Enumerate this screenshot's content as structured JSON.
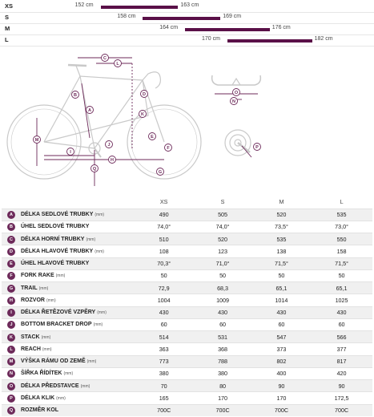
{
  "size_chart": [
    {
      "size": "XS",
      "from": "152 cm",
      "to": "163 cm",
      "range": [
        152,
        163
      ]
    },
    {
      "size": "S",
      "from": "158 cm",
      "to": "169 cm",
      "range": [
        158,
        169
      ]
    },
    {
      "size": "M",
      "from": "164 cm",
      "to": "176 cm",
      "range": [
        164,
        176
      ]
    },
    {
      "size": "L",
      "from": "170 cm",
      "to": "182 cm",
      "range": [
        170,
        182
      ]
    }
  ],
  "diagram_labels": [
    "A",
    "B",
    "C",
    "D",
    "E",
    "F",
    "G",
    "H",
    "I",
    "J",
    "K",
    "L",
    "M",
    "N",
    "O",
    "P",
    "Q"
  ],
  "colors": {
    "accent": "#6d2a5a",
    "bar": "#5a1048",
    "frame_line": "#c9c9c9"
  },
  "table": {
    "headers": [
      "",
      "",
      "XS",
      "S",
      "M",
      "L"
    ],
    "rows": [
      {
        "code": "A",
        "name": "DÉLKA SEDLOVÉ TRUBKY",
        "unit": "(mm)",
        "values": [
          "490",
          "505",
          "520",
          "535"
        ]
      },
      {
        "code": "B",
        "name": "ÚHEL SEDLOVÉ TRUBKY",
        "unit": "",
        "values": [
          "74,0°",
          "74,0°",
          "73,5°",
          "73,0°"
        ]
      },
      {
        "code": "C",
        "name": "DÉLKA HORNÍ TRUBKY",
        "unit": "(mm)",
        "values": [
          "510",
          "520",
          "535",
          "550"
        ]
      },
      {
        "code": "D",
        "name": "DÉLKA HLAVOVÉ TRUBKY",
        "unit": "(mm)",
        "values": [
          "108",
          "123",
          "138",
          "158"
        ]
      },
      {
        "code": "E",
        "name": "ÚHEL HLAVOVÉ TRUBKY",
        "unit": "",
        "values": [
          "70,3°",
          "71,0°",
          "71,5°",
          "71,5°"
        ]
      },
      {
        "code": "F",
        "name": "FORK RAKE",
        "unit": "(mm)",
        "values": [
          "50",
          "50",
          "50",
          "50"
        ]
      },
      {
        "code": "G",
        "name": "TRAIL",
        "unit": "(mm)",
        "values": [
          "72,9",
          "68,3",
          "65,1",
          "65,1"
        ]
      },
      {
        "code": "H",
        "name": "ROZVOR",
        "unit": "(mm)",
        "values": [
          "1004",
          "1009",
          "1014",
          "1025"
        ]
      },
      {
        "code": "I",
        "name": "DÉLKA ŘETĚZOVÉ VZPĚRY",
        "unit": "(mm)",
        "values": [
          "430",
          "430",
          "430",
          "430"
        ]
      },
      {
        "code": "J",
        "name": "BOTTOM BRACKET DROP",
        "unit": "(mm)",
        "values": [
          "60",
          "60",
          "60",
          "60"
        ]
      },
      {
        "code": "K",
        "name": "STACK",
        "unit": "(mm)",
        "values": [
          "514",
          "531",
          "547",
          "566"
        ]
      },
      {
        "code": "L",
        "name": "REACH",
        "unit": "(mm)",
        "values": [
          "363",
          "368",
          "373",
          "377"
        ]
      },
      {
        "code": "M",
        "name": "VÝŠKA RÁMU OD ZEMĚ",
        "unit": "(mm)",
        "values": [
          "773",
          "788",
          "802",
          "817"
        ]
      },
      {
        "code": "N",
        "name": "ŠÍŘKA ŘÍDÍTEK",
        "unit": "(mm)",
        "values": [
          "380",
          "380",
          "400",
          "420"
        ]
      },
      {
        "code": "O",
        "name": "DÉLKA PŘEDSTAVCE",
        "unit": "(mm)",
        "values": [
          "70",
          "80",
          "90",
          "90"
        ]
      },
      {
        "code": "P",
        "name": "DÉLKA KLIK",
        "unit": "(mm)",
        "values": [
          "165",
          "170",
          "170",
          "172,5"
        ]
      },
      {
        "code": "Q",
        "name": "ROZMĚR KOL",
        "unit": "",
        "values": [
          "700C",
          "700C",
          "700C",
          "700C"
        ]
      }
    ]
  }
}
